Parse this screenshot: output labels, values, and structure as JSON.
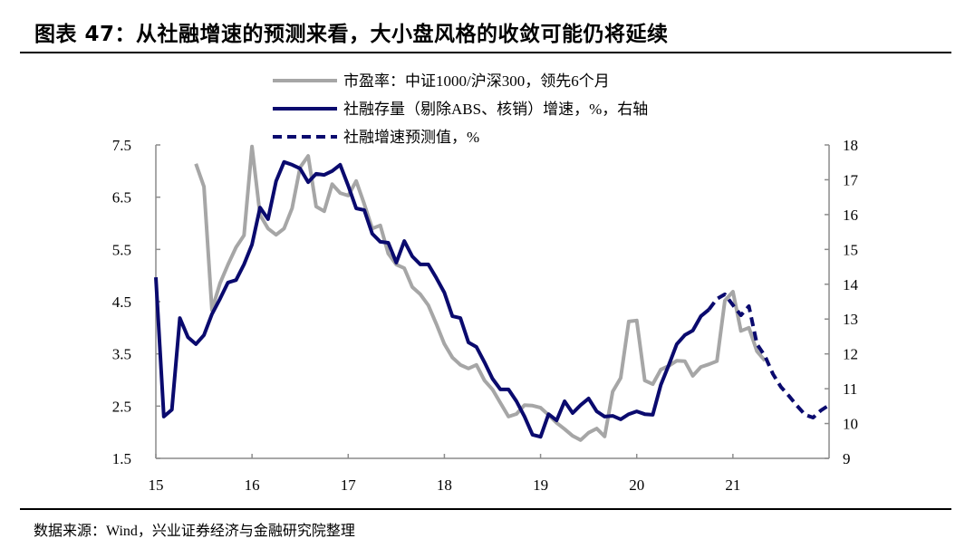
{
  "title": "图表 47：从社融增速的预测来看，大小盘风格的收敛可能仍将延续",
  "source": "数据来源：Wind，兴业证券经济与金融研究院整理",
  "colors": {
    "pe": "#a6a6a6",
    "sf": "#0a0a6e",
    "forecast": "#0a0a6e",
    "axis": "#8c8c8c"
  },
  "chart_data": {
    "type": "line",
    "title": "",
    "xlabel": "",
    "ylabel_left": "",
    "ylabel_right": "",
    "x_ticks": [
      "15",
      "16",
      "17",
      "18",
      "19",
      "20",
      "21"
    ],
    "x_tick_dates": [
      "2015-01",
      "2016-01",
      "2017-01",
      "2018-01",
      "2019-01",
      "2020-01",
      "2021-01"
    ],
    "xlim": [
      "2015-01",
      "2022-01"
    ],
    "ylim_left": [
      1.5,
      7.5
    ],
    "y_ticks_left": [
      "7.5",
      "6.5",
      "5.5",
      "4.5",
      "3.5",
      "2.5",
      "1.5"
    ],
    "ylim_right": [
      9,
      18
    ],
    "y_ticks_right": [
      "18",
      "17",
      "16",
      "15",
      "14",
      "13",
      "12",
      "11",
      "10",
      "9"
    ],
    "grid": false,
    "legend_position": "top-center",
    "series": [
      {
        "name": "市盈率：中证1000/沪深300，领先6个月",
        "axis": "left",
        "style": "solid",
        "x": [
          "2015-06",
          "2015-07",
          "2015-08",
          "2015-09",
          "2015-10",
          "2015-11",
          "2015-12",
          "2016-01",
          "2016-02",
          "2016-03",
          "2016-04",
          "2016-05",
          "2016-06",
          "2016-07",
          "2016-08",
          "2016-09",
          "2016-10",
          "2016-11",
          "2016-12",
          "2017-01",
          "2017-02",
          "2017-03",
          "2017-04",
          "2017-05",
          "2017-06",
          "2017-07",
          "2017-08",
          "2017-09",
          "2017-10",
          "2017-11",
          "2017-12",
          "2018-01",
          "2018-02",
          "2018-03",
          "2018-04",
          "2018-05",
          "2018-06",
          "2018-07",
          "2018-08",
          "2018-09",
          "2018-10",
          "2018-11",
          "2018-12",
          "2019-01",
          "2019-02",
          "2019-03",
          "2019-04",
          "2019-05",
          "2019-06",
          "2019-07",
          "2019-08",
          "2019-09",
          "2019-10",
          "2019-11",
          "2019-12",
          "2020-01",
          "2020-02",
          "2020-03",
          "2020-04",
          "2020-05",
          "2020-06",
          "2020-07",
          "2020-08",
          "2020-09",
          "2020-10",
          "2020-11",
          "2020-12",
          "2021-01",
          "2021-02",
          "2021-03",
          "2021-04",
          "2021-05"
        ],
        "values": [
          7.14,
          6.7,
          4.34,
          4.85,
          5.21,
          5.54,
          5.77,
          7.47,
          6.16,
          5.9,
          5.78,
          5.9,
          6.29,
          7.07,
          7.29,
          6.32,
          6.23,
          6.75,
          6.58,
          6.53,
          6.81,
          6.37,
          5.9,
          5.96,
          5.42,
          5.21,
          5.14,
          4.78,
          4.64,
          4.43,
          4.07,
          3.69,
          3.43,
          3.29,
          3.22,
          3.29,
          2.99,
          2.82,
          2.56,
          2.3,
          2.35,
          2.52,
          2.51,
          2.47,
          2.33,
          2.18,
          2.06,
          1.93,
          1.85,
          1.99,
          2.07,
          1.92,
          2.78,
          3.04,
          4.12,
          4.14,
          2.99,
          2.92,
          3.2,
          3.27,
          3.37,
          3.36,
          3.08,
          3.25,
          3.3,
          3.36,
          4.52,
          4.69,
          3.94,
          4.0,
          3.55,
          3.37
        ]
      },
      {
        "name": "社融存量（剔除ABS、核销）增速，%，右轴",
        "axis": "right",
        "style": "solid",
        "x": [
          "2015-01",
          "2015-02",
          "2015-03",
          "2015-04",
          "2015-05",
          "2015-06",
          "2015-07",
          "2015-08",
          "2015-09",
          "2015-10",
          "2015-11",
          "2015-12",
          "2016-01",
          "2016-02",
          "2016-03",
          "2016-04",
          "2016-05",
          "2016-06",
          "2016-07",
          "2016-08",
          "2016-09",
          "2016-10",
          "2016-11",
          "2016-12",
          "2017-01",
          "2017-02",
          "2017-03",
          "2017-04",
          "2017-05",
          "2017-06",
          "2017-07",
          "2017-08",
          "2017-09",
          "2017-10",
          "2017-11",
          "2017-12",
          "2018-01",
          "2018-02",
          "2018-03",
          "2018-04",
          "2018-05",
          "2018-06",
          "2018-07",
          "2018-08",
          "2018-09",
          "2018-10",
          "2018-11",
          "2018-12",
          "2019-01",
          "2019-02",
          "2019-03",
          "2019-04",
          "2019-05",
          "2019-06",
          "2019-07",
          "2019-08",
          "2019-09",
          "2019-10",
          "2019-11",
          "2019-12",
          "2020-01",
          "2020-02",
          "2020-03",
          "2020-04",
          "2020-05",
          "2020-06",
          "2020-07",
          "2020-08",
          "2020-09",
          "2020-10"
        ],
        "values": [
          14.2,
          10.2,
          10.4,
          13.03,
          12.48,
          12.28,
          12.54,
          13.14,
          13.58,
          14.05,
          14.12,
          14.57,
          15.14,
          16.2,
          15.87,
          16.96,
          17.51,
          17.43,
          17.32,
          16.93,
          17.17,
          17.14,
          17.25,
          17.43,
          16.83,
          16.18,
          16.13,
          15.45,
          15.22,
          15.19,
          14.62,
          15.24,
          14.8,
          14.57,
          14.57,
          14.18,
          13.76,
          13.08,
          13.03,
          12.33,
          12.2,
          11.76,
          11.29,
          10.98,
          10.98,
          10.64,
          10.2,
          9.68,
          9.62,
          10.27,
          10.09,
          10.64,
          10.3,
          10.53,
          10.72,
          10.35,
          10.2,
          10.22,
          10.12,
          10.27,
          10.35,
          10.27,
          10.25,
          11.11,
          11.68,
          12.28,
          12.54,
          12.67,
          13.08,
          13.27
        ]
      },
      {
        "name": "社融增速预测值，%",
        "axis": "right",
        "style": "dashed",
        "x": [
          "2020-10",
          "2020-11",
          "2020-12",
          "2021-01",
          "2021-02",
          "2021-03",
          "2021-04",
          "2021-05",
          "2021-06",
          "2021-07",
          "2021-08",
          "2021-09",
          "2021-10",
          "2021-11",
          "2021-12",
          "2022-01"
        ],
        "values": [
          13.27,
          13.58,
          13.71,
          13.4,
          13.11,
          13.37,
          12.28,
          11.94,
          11.42,
          11.05,
          10.79,
          10.51,
          10.25,
          10.17,
          10.38,
          10.53
        ]
      }
    ]
  }
}
